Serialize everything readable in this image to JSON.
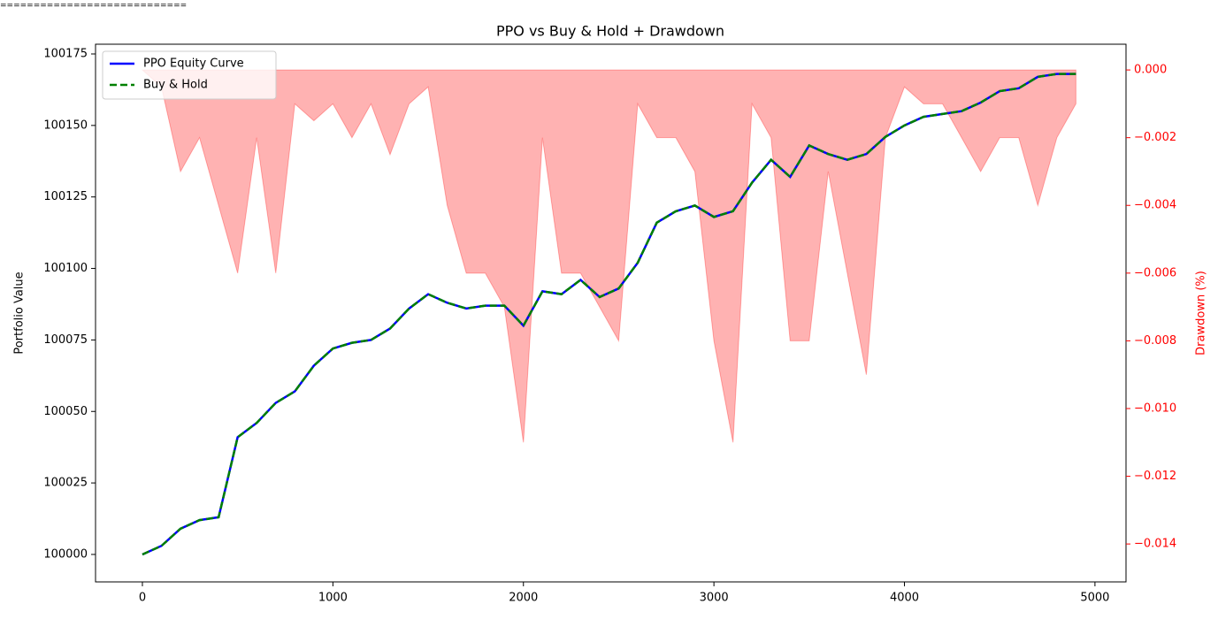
{
  "header_text": "============================",
  "chart_data": {
    "type": "line",
    "title": "PPO vs Buy & Hold + Drawdown",
    "y_label": "Portfolio Value",
    "y2_label": "Drawdown (%)",
    "x": [
      0,
      100,
      200,
      300,
      400,
      500,
      600,
      700,
      800,
      900,
      1000,
      1100,
      1200,
      1300,
      1400,
      1500,
      1600,
      1700,
      1800,
      1900,
      2000,
      2100,
      2200,
      2300,
      2400,
      2500,
      2600,
      2700,
      2800,
      2900,
      3000,
      3100,
      3200,
      3300,
      3400,
      3500,
      3600,
      3700,
      3800,
      3900,
      4000,
      4100,
      4200,
      4300,
      4400,
      4500,
      4600,
      4700,
      4800,
      4900
    ],
    "series": [
      {
        "name": "PPO Equity Curve",
        "color": "#0000ff",
        "values": [
          100000,
          100003,
          100009,
          100012,
          100013,
          100041,
          100046,
          100053,
          100057,
          100066,
          100072,
          100074,
          100075,
          100079,
          100086,
          100091,
          100088,
          100086,
          100087,
          100087,
          100080,
          100092,
          100091,
          100096,
          100090,
          100093,
          100102,
          100116,
          100120,
          100122,
          100118,
          100120,
          100130,
          100138,
          100132,
          100143,
          100140,
          100138,
          100140,
          100146,
          100150,
          100153,
          100154,
          100155,
          100158,
          100162,
          100163,
          100167,
          100168,
          100168
        ]
      },
      {
        "name": "Buy & Hold",
        "color": "#008000",
        "dashed": true,
        "values": [
          100000,
          100003,
          100009,
          100012,
          100013,
          100041,
          100046,
          100053,
          100057,
          100066,
          100072,
          100074,
          100075,
          100079,
          100086,
          100091,
          100088,
          100086,
          100087,
          100087,
          100080,
          100092,
          100091,
          100096,
          100090,
          100093,
          100102,
          100116,
          100120,
          100122,
          100118,
          100120,
          100130,
          100138,
          100132,
          100143,
          100140,
          100138,
          100140,
          100146,
          100150,
          100153,
          100154,
          100155,
          100158,
          100162,
          100163,
          100167,
          100168,
          100168
        ]
      }
    ],
    "drawdown": {
      "color": "#ff0000",
      "axis": "y2",
      "values": [
        0,
        -0.0005,
        -0.003,
        -0.002,
        -0.004,
        -0.006,
        -0.002,
        -0.006,
        -0.001,
        -0.0015,
        -0.001,
        -0.002,
        -0.001,
        -0.0025,
        -0.001,
        -0.0005,
        -0.004,
        -0.006,
        -0.006,
        -0.007,
        -0.011,
        -0.002,
        -0.006,
        -0.006,
        -0.007,
        -0.008,
        -0.001,
        -0.002,
        -0.002,
        -0.003,
        -0.008,
        -0.011,
        -0.001,
        -0.002,
        -0.008,
        -0.008,
        -0.003,
        -0.006,
        -0.009,
        -0.002,
        -0.0005,
        -0.001,
        -0.001,
        -0.002,
        -0.003,
        -0.002,
        -0.002,
        -0.004,
        -0.002,
        -0.001
      ]
    },
    "xlim": [
      -246,
      5163
    ],
    "xticks": [
      0,
      1000,
      2000,
      3000,
      4000,
      5000
    ],
    "ylim": [
      99990.4,
      100178.4
    ],
    "yticks": [
      100000,
      100025,
      100050,
      100075,
      100100,
      100125,
      100150,
      100175
    ],
    "y2lim": [
      -0.01512,
      0.00076
    ],
    "y2ticks": [
      {
        "value": 0,
        "label": "0.000"
      },
      {
        "value": -0.002,
        "label": "−0.002"
      },
      {
        "value": -0.004,
        "label": "−0.004"
      },
      {
        "value": -0.006,
        "label": "−0.006"
      },
      {
        "value": -0.008,
        "label": "−0.008"
      },
      {
        "value": -0.01,
        "label": "−0.010"
      },
      {
        "value": -0.012,
        "label": "−0.012"
      },
      {
        "value": -0.014,
        "label": "−0.014"
      }
    ],
    "legend": "upper left"
  }
}
